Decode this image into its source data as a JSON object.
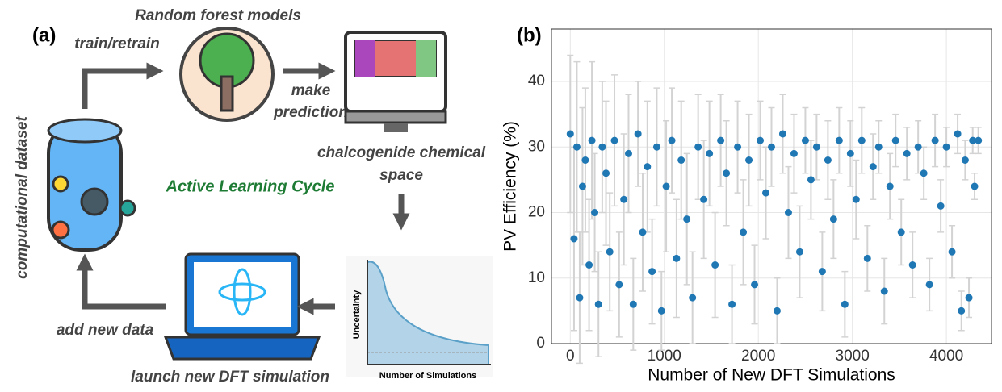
{
  "panel_a": {
    "label": "(a)",
    "model_title": "Random forest models",
    "train": "train/retrain",
    "predict": [
      "make",
      "prediction"
    ],
    "space": [
      "chalcogenide chemical",
      "space"
    ],
    "cycle": "Active Learning Cycle",
    "dataset": "computational dataset",
    "add": "add new data",
    "launch": "launch new DFT simulation",
    "inset_y": "Uncertainty",
    "inset_x": "Number of Simulations"
  },
  "chart_data": {
    "type": "scatter",
    "panel_label": "(b)",
    "x_label": "Number of New DFT Simulations",
    "y_label": "PV Efficiency (%)",
    "xlim": [
      -200,
      4480
    ],
    "ylim": [
      0,
      48
    ],
    "xticks": [
      0,
      1000,
      2000,
      3000,
      4000
    ],
    "yticks": [
      0,
      10,
      20,
      30,
      40
    ],
    "grid": true,
    "error_color": "#d3d3d3",
    "series": [
      {
        "color": "#1f77b4",
        "x": [
          0,
          40,
          70,
          100,
          130,
          160,
          200,
          230,
          260,
          300,
          340,
          380,
          420,
          470,
          520,
          570,
          620,
          670,
          720,
          770,
          820,
          870,
          920,
          970,
          1020,
          1080,
          1130,
          1180,
          1240,
          1300,
          1360,
          1420,
          1480,
          1540,
          1600,
          1660,
          1720,
          1780,
          1840,
          1900,
          1960,
          2020,
          2080,
          2140,
          2200,
          2260,
          2320,
          2380,
          2440,
          2500,
          2560,
          2620,
          2680,
          2740,
          2800,
          2860,
          2920,
          2980,
          3040,
          3100,
          3160,
          3220,
          3280,
          3340,
          3400,
          3460,
          3520,
          3580,
          3640,
          3700,
          3760,
          3820,
          3880,
          3940,
          4000,
          4060,
          4120,
          4160,
          4200,
          4240,
          4280,
          4300,
          4340
        ],
        "values": [
          32,
          16,
          30,
          7,
          24,
          28,
          12,
          31,
          20,
          6,
          30,
          26,
          14,
          31,
          9,
          22,
          29,
          6,
          32,
          17,
          27,
          11,
          30,
          5,
          24,
          31,
          13,
          28,
          19,
          7,
          30,
          22,
          29,
          12,
          31,
          26,
          6,
          30,
          17,
          28,
          9,
          31,
          23,
          30,
          5,
          32,
          20,
          29,
          14,
          31,
          25,
          30,
          11,
          28,
          19,
          31,
          6,
          29,
          22,
          31,
          13,
          27,
          30,
          8,
          24,
          31,
          17,
          29,
          12,
          30,
          26,
          9,
          31,
          21,
          30,
          14,
          32,
          5,
          28,
          7,
          31,
          24,
          31
        ],
        "errors": [
          12,
          14,
          13,
          10,
          12,
          11,
          10,
          12,
          9,
          8,
          10,
          11,
          9,
          10,
          8,
          10,
          9,
          7,
          8,
          9,
          10,
          8,
          9,
          6,
          10,
          8,
          9,
          9,
          10,
          7,
          8,
          9,
          8,
          8,
          7,
          8,
          6,
          7,
          8,
          7,
          6,
          6,
          7,
          6,
          5,
          6,
          7,
          6,
          7,
          5,
          6,
          5,
          6,
          6,
          6,
          5,
          5,
          5,
          6,
          5,
          5,
          5,
          4,
          5,
          5,
          4,
          5,
          4,
          5,
          4,
          4,
          4,
          4,
          4,
          3,
          4,
          3,
          3,
          3,
          3,
          2,
          2,
          2
        ]
      }
    ]
  }
}
